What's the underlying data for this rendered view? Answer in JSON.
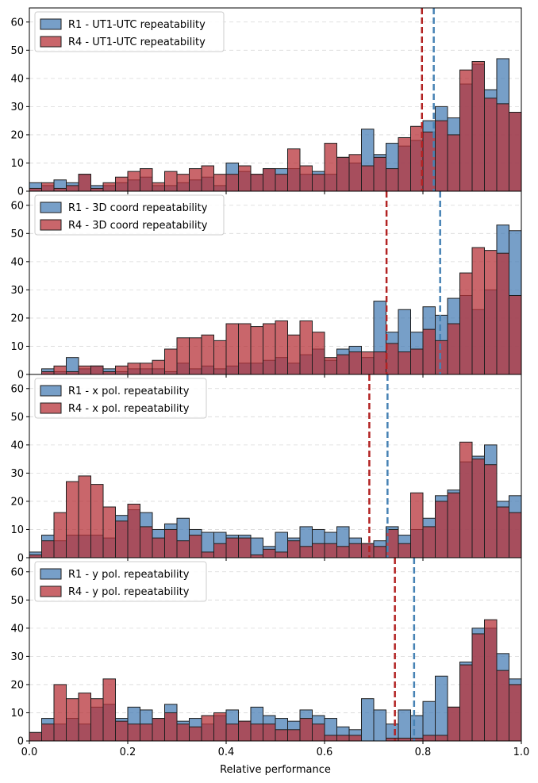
{
  "chart_data": {
    "type": "histogram",
    "xlabel": "Relative performance",
    "xlim": [
      0,
      1
    ],
    "ylim": [
      0,
      65
    ],
    "x_ticks": [
      "0.0",
      "0.2",
      "0.4",
      "0.6",
      "0.8",
      "1.0"
    ],
    "y_ticks": [
      "0",
      "10",
      "20",
      "30",
      "40",
      "50",
      "60"
    ],
    "bins": 40,
    "bin_width": 0.025,
    "colors": {
      "R1": "#4a7fb5",
      "R4": "#b7333a",
      "R1_line": "#4682b4",
      "R4_line": "#b22222",
      "grid": "#d8d8d8"
    },
    "panels": [
      {
        "legend": [
          "R1 - UT1-UTC repeatability",
          "R4 - UT1-UTC repeatability"
        ],
        "r1_mean": 0.822,
        "r4_mean": 0.798,
        "r1": [
          3,
          2,
          4,
          3,
          6,
          2,
          2,
          3,
          4,
          5,
          2,
          2,
          3,
          4,
          5,
          2,
          10,
          7,
          6,
          8,
          8,
          8,
          6,
          7,
          6,
          12,
          10,
          22,
          13,
          17,
          16,
          18,
          25,
          30,
          26,
          38,
          45,
          36,
          47,
          28
        ],
        "r4": [
          1,
          3,
          1,
          2,
          6,
          1,
          3,
          5,
          7,
          8,
          3,
          7,
          6,
          8,
          9,
          6,
          6,
          9,
          6,
          8,
          6,
          15,
          9,
          6,
          17,
          12,
          13,
          9,
          12,
          8,
          19,
          23,
          21,
          25,
          20,
          43,
          46,
          33,
          31,
          28
        ]
      },
      {
        "legend": [
          "R1 - 3D coord repeatability",
          "R4 - 3D coord repeatability"
        ],
        "r1_mean": 0.835,
        "r4_mean": 0.726,
        "r1": [
          0,
          2,
          1,
          6,
          2,
          3,
          2,
          1,
          2,
          2,
          2,
          1,
          4,
          2,
          3,
          2,
          3,
          4,
          4,
          5,
          6,
          4,
          7,
          9,
          5,
          9,
          10,
          6,
          26,
          15,
          23,
          15,
          24,
          21,
          27,
          28,
          23,
          30,
          53,
          51
        ],
        "r4": [
          0,
          1,
          3,
          1,
          3,
          3,
          1,
          3,
          4,
          4,
          5,
          9,
          13,
          13,
          14,
          12,
          18,
          18,
          17,
          18,
          19,
          14,
          19,
          15,
          6,
          7,
          8,
          8,
          8,
          11,
          8,
          9,
          16,
          12,
          18,
          36,
          45,
          44,
          43,
          28
        ]
      },
      {
        "legend": [
          "R1 - x pol. repeatability",
          "R4 - x pol. repeatability"
        ],
        "r1_mean": 0.728,
        "r4_mean": 0.691,
        "r1": [
          2,
          8,
          6,
          8,
          8,
          8,
          7,
          15,
          17,
          16,
          10,
          12,
          14,
          10,
          9,
          9,
          8,
          8,
          7,
          4,
          9,
          7,
          11,
          10,
          9,
          11,
          7,
          5,
          6,
          11,
          8,
          10,
          14,
          22,
          24,
          34,
          36,
          40,
          20,
          22
        ],
        "r4": [
          1,
          6,
          16,
          27,
          29,
          26,
          18,
          13,
          19,
          11,
          7,
          10,
          6,
          8,
          2,
          5,
          7,
          7,
          1,
          3,
          2,
          6,
          4,
          5,
          5,
          4,
          5,
          5,
          4,
          10,
          5,
          23,
          11,
          20,
          23,
          41,
          35,
          33,
          18,
          16
        ]
      },
      {
        "legend": [
          "R1 - y pol. repeatability",
          "R4 - y pol. repeatability"
        ],
        "r1_mean": 0.782,
        "r4_mean": 0.743,
        "r1": [
          3,
          8,
          6,
          8,
          6,
          12,
          13,
          8,
          12,
          11,
          8,
          13,
          7,
          8,
          6,
          9,
          11,
          7,
          12,
          9,
          8,
          7,
          11,
          9,
          8,
          5,
          4,
          15,
          11,
          6,
          11,
          9,
          14,
          23,
          12,
          28,
          40,
          40,
          31,
          22
        ],
        "r4": [
          3,
          6,
          20,
          15,
          17,
          15,
          22,
          7,
          6,
          6,
          8,
          10,
          6,
          5,
          9,
          10,
          6,
          7,
          6,
          6,
          4,
          4,
          8,
          6,
          2,
          2,
          2,
          0,
          0,
          1,
          1,
          1,
          2,
          2,
          12,
          27,
          38,
          43,
          25,
          20
        ]
      }
    ]
  }
}
